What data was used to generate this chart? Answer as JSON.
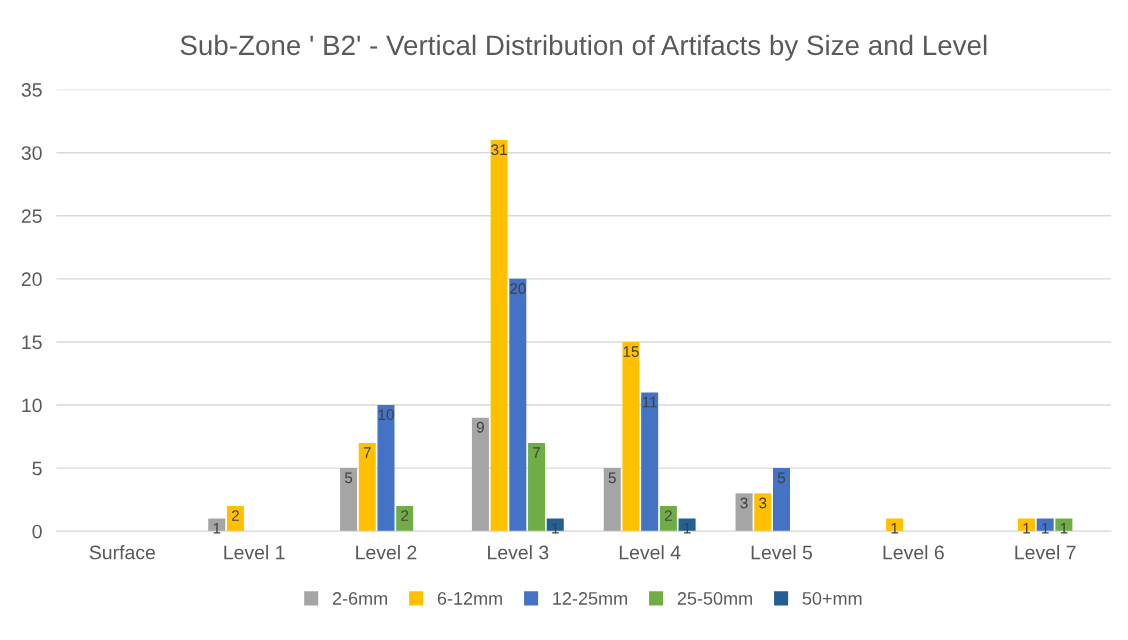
{
  "chart_data": {
    "type": "bar",
    "title": "Sub-Zone ' B2' - Vertical Distribution of Artifacts by Size and Level",
    "categories": [
      "Surface",
      "Level 1",
      "Level 2",
      "Level 3",
      "Level 4",
      "Level 5",
      "Level 6",
      "Level 7"
    ],
    "series": [
      {
        "name": "2-6mm",
        "color": "#a5a5a5",
        "values": [
          0,
          1,
          5,
          9,
          5,
          3,
          0,
          0
        ],
        "value_labels": [
          null,
          "1",
          "5",
          "9",
          "5",
          "3",
          null,
          null
        ]
      },
      {
        "name": "6-12mm",
        "color": "#ffc000",
        "values": [
          0,
          2,
          7,
          31,
          15,
          3,
          1,
          1
        ],
        "value_labels": [
          null,
          "2",
          "7",
          "31",
          "15",
          "3",
          "1",
          "1"
        ]
      },
      {
        "name": "12-25mm",
        "color": "#4472c4",
        "values": [
          0,
          0,
          10,
          20,
          11,
          5,
          0,
          1
        ],
        "value_labels": [
          null,
          null,
          "10",
          "20",
          "11",
          "5",
          null,
          "1"
        ]
      },
      {
        "name": "25-50mm",
        "color": "#70ad47",
        "values": [
          0,
          0,
          2,
          7,
          2,
          0,
          0,
          1
        ],
        "value_labels": [
          null,
          null,
          "2",
          "7",
          "2",
          null,
          null,
          "1"
        ]
      },
      {
        "name": "50+mm",
        "color": "#255e91",
        "values": [
          0,
          0,
          0,
          1,
          1,
          0,
          0,
          0
        ],
        "value_labels": [
          null,
          null,
          null,
          "1",
          "1",
          null,
          null,
          null
        ]
      }
    ],
    "ylim": [
      0,
      35
    ],
    "yticks": [
      0,
      5,
      10,
      15,
      20,
      25,
      30,
      35
    ],
    "grid": "y",
    "legend": "bottom"
  }
}
